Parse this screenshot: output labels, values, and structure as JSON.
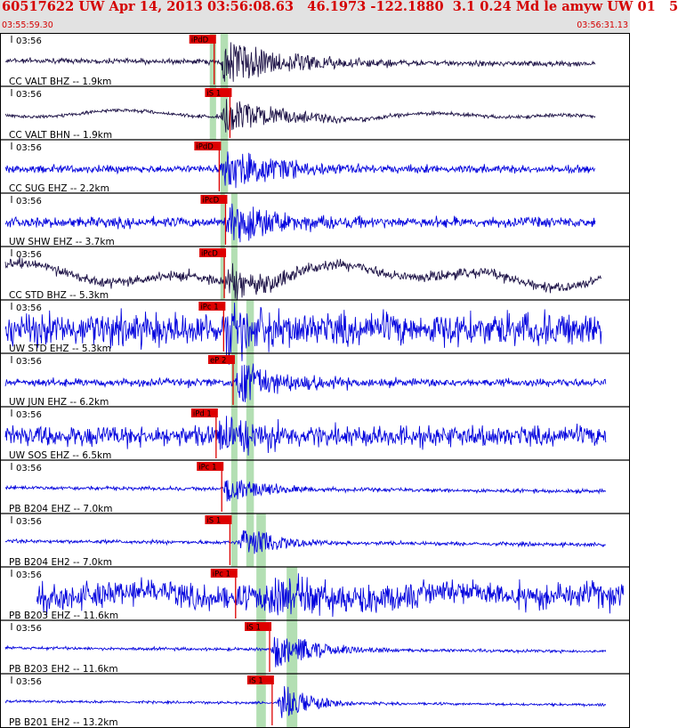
{
  "header": {
    "title": "60517622 UW Apr 14, 2013 03:56:08.63   46.1973 -122.1880  3.1 0.24 Md le amyw UW 01   5",
    "start_time": "03:55:59.30",
    "end_time": "03:56:31.13"
  },
  "colors": {
    "header_bg": "#e2e2e2",
    "header_text": "#d40000",
    "trace_blue": "#0000dd",
    "trace_dark": "#1a0f44",
    "pick_box": "#dd0000",
    "window_band": "#9ad49a"
  },
  "bands": [
    {
      "t0": 0.333,
      "t1": 0.343,
      "s0": 0,
      "s1": 2
    },
    {
      "t0": 0.35,
      "t1": 0.362,
      "s0": 0,
      "s1": 3
    },
    {
      "t0": 0.35,
      "t1": 0.357,
      "s0": 3,
      "s1": 5
    },
    {
      "t0": 0.367,
      "t1": 0.377,
      "s0": 3,
      "s1": 10
    },
    {
      "t0": 0.391,
      "t1": 0.403,
      "s0": 5,
      "s1": 10
    },
    {
      "t0": 0.407,
      "t1": 0.422,
      "s0": 9,
      "s1": 13
    },
    {
      "t0": 0.455,
      "t1": 0.472,
      "s0": 10,
      "s1": 13
    }
  ],
  "traces": [
    {
      "label": "CC VALT BHZ -- 1.9km",
      "time": "03:56",
      "pick": "iPdD",
      "pick_t": 0.34,
      "color": "dark",
      "onset": 0.348,
      "amp": 26,
      "noise": 2,
      "dur": 0.25,
      "wave": 0,
      "endf": 0.945,
      "startf": 0.0
    },
    {
      "label": "CC VALT BHN -- 1.9km",
      "time": "03:56",
      "pick": "iS 1",
      "pick_t": 0.365,
      "color": "dark",
      "onset": 0.35,
      "amp": 20,
      "noise": 1.5,
      "dur": 0.22,
      "wave": 5,
      "endf": 0.945,
      "startf": 0.0
    },
    {
      "label": "CC SUG EHZ -- 2.2km",
      "time": "03:56",
      "pick": "iPdD",
      "pick_t": 0.348,
      "color": "blue",
      "onset": 0.35,
      "amp": 24,
      "noise": 3,
      "dur": 0.22,
      "wave": 0,
      "endf": 0.945,
      "startf": 0.0
    },
    {
      "label": "UW SHW EHZ -- 3.7km",
      "time": "03:56",
      "pick": "iPcD",
      "pick_t": 0.358,
      "color": "blue",
      "onset": 0.355,
      "amp": 26,
      "noise": 4,
      "dur": 0.2,
      "wave": 0,
      "endf": 0.945,
      "startf": 0.0
    },
    {
      "label": "CC STD BHZ -- 5.3km",
      "time": "03:56",
      "pick": "iPcD",
      "pick_t": 0.356,
      "color": "dark",
      "onset": 0.355,
      "amp": 22,
      "noise": 4,
      "dur": 0.15,
      "wave": 14,
      "endf": 0.955,
      "startf": 0.0
    },
    {
      "label": "UW STD EHZ -- 5.3km",
      "time": "03:56",
      "pick": "iPc 1",
      "pick_t": 0.355,
      "color": "blue",
      "onset": 0.355,
      "amp": 24,
      "noise": 13,
      "dur": 0.2,
      "wave": 0,
      "endf": 0.955,
      "startf": 0.0
    },
    {
      "label": "UW JUN EHZ -- 6.2km",
      "time": "03:56",
      "pick": "eP 2",
      "pick_t": 0.37,
      "color": "blue",
      "onset": 0.372,
      "amp": 24,
      "noise": 3,
      "dur": 0.18,
      "wave": 0,
      "endf": 0.962,
      "startf": 0.0
    },
    {
      "label": "UW SOS EHZ -- 6.5km",
      "time": "03:56",
      "pick": "iPd 1",
      "pick_t": 0.343,
      "color": "blue",
      "onset": 0.34,
      "amp": 22,
      "noise": 8,
      "dur": 0.2,
      "wave": 0,
      "endf": 0.962,
      "startf": 0.0
    },
    {
      "label": "PB B204 EHZ -- 7.0km",
      "time": "03:56",
      "pick": "iPc 1",
      "pick_t": 0.352,
      "color": "blue",
      "onset": 0.352,
      "amp": 16,
      "noise": 1.5,
      "dur": 0.14,
      "wave": 0,
      "endf": 0.962,
      "startf": 0.0
    },
    {
      "label": "PB B204 EH2 -- 7.0km",
      "time": "03:56",
      "pick": "iS 1",
      "pick_t": 0.365,
      "color": "blue",
      "onset": 0.378,
      "amp": 20,
      "noise": 1.5,
      "dur": 0.12,
      "wave": 0,
      "endf": 0.962,
      "startf": 0.0
    },
    {
      "label": "PB B203 EHZ -- 11.6km",
      "time": "03:56",
      "pick": "iPc 1",
      "pick_t": 0.374,
      "color": "blue",
      "onset": 0.42,
      "amp": 24,
      "noise": 10,
      "dur": 0.25,
      "wave": 6,
      "endf": 0.99,
      "startf": 0.05
    },
    {
      "label": "PB B203 EH2 -- 11.6km",
      "time": "03:56",
      "pick": "iS 1",
      "pick_t": 0.428,
      "color": "blue",
      "onset": 0.43,
      "amp": 22,
      "noise": 1.2,
      "dur": 0.15,
      "wave": 0,
      "endf": 0.962,
      "startf": 0.0
    },
    {
      "label": "PB B201 EH2 -- 13.2km",
      "time": "03:56",
      "pick": "iS 1",
      "pick_t": 0.432,
      "color": "blue",
      "onset": 0.44,
      "amp": 22,
      "noise": 1.0,
      "dur": 0.1,
      "wave": 0,
      "endf": 0.962,
      "startf": 0.0
    }
  ]
}
